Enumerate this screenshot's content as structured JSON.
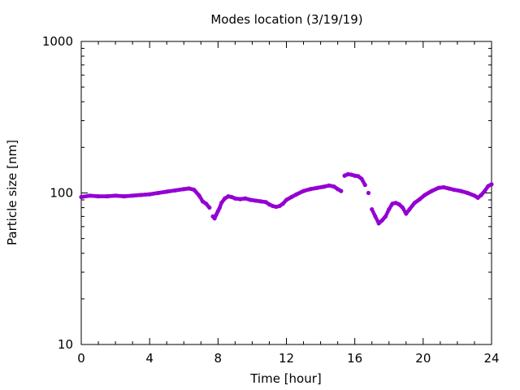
{
  "chart_data": {
    "type": "scatter",
    "title": "Modes location (3/19/19)",
    "xlabel": "Time [hour]",
    "ylabel": "Particle size [nm]",
    "xlim": [
      0,
      24
    ],
    "ylim": [
      10,
      1000
    ],
    "yscale": "log",
    "x_ticks": [
      0,
      4,
      8,
      12,
      16,
      20,
      24
    ],
    "y_ticks": [
      10,
      100,
      1000
    ],
    "grid": false,
    "legend": "none",
    "marker_color": "#9400d3",
    "series": [
      {
        "x": [
          0,
          0.5,
          1,
          1.5,
          2,
          2.5,
          3,
          3.5,
          4,
          4.5,
          5,
          5.5,
          6,
          6.3,
          6.6,
          6.9,
          7.1,
          7.3,
          7.5,
          7.7,
          7.8,
          7.9,
          8.0,
          8.1,
          8.2,
          8.4,
          8.6,
          8.8,
          9.0,
          9.3,
          9.6,
          9.9,
          10.2,
          10.5,
          10.8,
          11.0,
          11.2,
          11.4,
          11.6,
          11.8,
          12.0,
          12.3,
          12.6,
          13.0,
          13.4,
          13.8,
          14.2,
          14.5,
          14.8,
          15.0,
          15.2,
          15.4,
          15.6,
          15.8,
          16.0,
          16.2,
          16.4,
          16.6,
          16.8,
          17.0,
          17.2,
          17.4,
          17.6,
          17.8,
          18.0,
          18.2,
          18.4,
          18.6,
          18.8,
          19.0,
          19.2,
          19.5,
          19.8,
          20.1,
          20.5,
          20.9,
          21.2,
          21.5,
          21.8,
          22.2,
          22.6,
          23.0,
          23.2,
          23.4,
          23.6,
          23.8,
          24.0
        ],
        "y": [
          94,
          96,
          95,
          95,
          96,
          95,
          96,
          97,
          98,
          100,
          102,
          104,
          106,
          107,
          105,
          96,
          88,
          85,
          80,
          70,
          68,
          72,
          76,
          80,
          86,
          92,
          95,
          94,
          92,
          91,
          92,
          90,
          89,
          88,
          87,
          84,
          82,
          81,
          82,
          85,
          90,
          94,
          98,
          103,
          106,
          108,
          110,
          112,
          110,
          106,
          103,
          130,
          133,
          132,
          130,
          129,
          124,
          113,
          100,
          78,
          70,
          63,
          66,
          70,
          78,
          85,
          86,
          84,
          80,
          73,
          78,
          86,
          91,
          97,
          103,
          108,
          109,
          107,
          105,
          103,
          100,
          96,
          93,
          97,
          103,
          111,
          114
        ]
      }
    ]
  }
}
